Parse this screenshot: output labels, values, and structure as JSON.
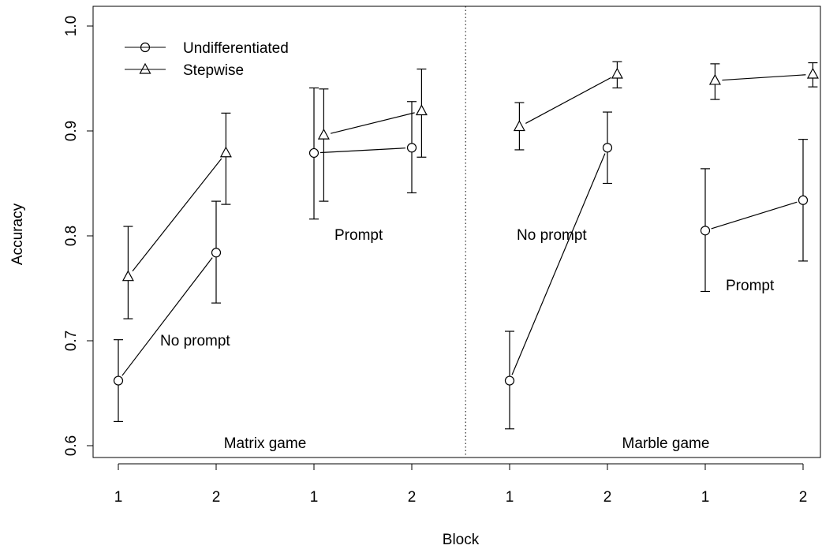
{
  "chart_data": {
    "type": "line",
    "xlabel": "Block",
    "ylabel": "Accuracy",
    "ylim": [
      0.6,
      1.0
    ],
    "yticks": [
      "0.6",
      "0.7",
      "0.8",
      "0.9",
      "1.0"
    ],
    "x_positions": [
      1,
      2,
      3,
      4,
      5,
      6,
      7,
      8
    ],
    "xtick_labels": [
      "1",
      "2",
      "1",
      "2",
      "1",
      "2",
      "1",
      "2"
    ],
    "grid": false,
    "legend_position": "top-left",
    "legend": [
      {
        "name": "Undifferentiated",
        "marker": "circle"
      },
      {
        "name": "Stepwise",
        "marker": "triangle"
      }
    ],
    "panel_labels": [
      "Matrix game",
      "Marble game"
    ],
    "annotations": [
      "No prompt",
      "Prompt",
      "No prompt",
      "Prompt"
    ],
    "groups": [
      {
        "series": "Undifferentiated",
        "x": [
          1,
          2
        ],
        "y": [
          0.662,
          0.784
        ],
        "err_low": [
          0.623,
          0.736
        ],
        "err_high": [
          0.701,
          0.833
        ]
      },
      {
        "series": "Stepwise",
        "x": [
          1.1,
          2.1
        ],
        "y": [
          0.761,
          0.879
        ],
        "err_low": [
          0.721,
          0.83
        ],
        "err_high": [
          0.809,
          0.917
        ]
      },
      {
        "series": "Undifferentiated",
        "x": [
          3,
          4
        ],
        "y": [
          0.879,
          0.884
        ],
        "err_low": [
          0.816,
          0.841
        ],
        "err_high": [
          0.941,
          0.928
        ]
      },
      {
        "series": "Stepwise",
        "x": [
          3.1,
          4.1
        ],
        "y": [
          0.896,
          0.919
        ],
        "err_low": [
          0.833,
          0.875
        ],
        "err_high": [
          0.94,
          0.959
        ]
      },
      {
        "series": "Undifferentiated",
        "x": [
          5,
          6
        ],
        "y": [
          0.662,
          0.884
        ],
        "err_low": [
          0.616,
          0.85
        ],
        "err_high": [
          0.709,
          0.918
        ]
      },
      {
        "series": "Stepwise",
        "x": [
          5.1,
          6.1
        ],
        "y": [
          0.904,
          0.954
        ],
        "err_low": [
          0.882,
          0.941
        ],
        "err_high": [
          0.927,
          0.966
        ]
      },
      {
        "series": "Undifferentiated",
        "x": [
          7,
          8
        ],
        "y": [
          0.805,
          0.834
        ],
        "err_low": [
          0.747,
          0.776
        ],
        "err_high": [
          0.864,
          0.892
        ]
      },
      {
        "series": "Stepwise",
        "x": [
          7.1,
          8.1
        ],
        "y": [
          0.948,
          0.954
        ],
        "err_low": [
          0.93,
          0.942
        ],
        "err_high": [
          0.964,
          0.965
        ]
      }
    ],
    "separator_x": 4.55
  }
}
